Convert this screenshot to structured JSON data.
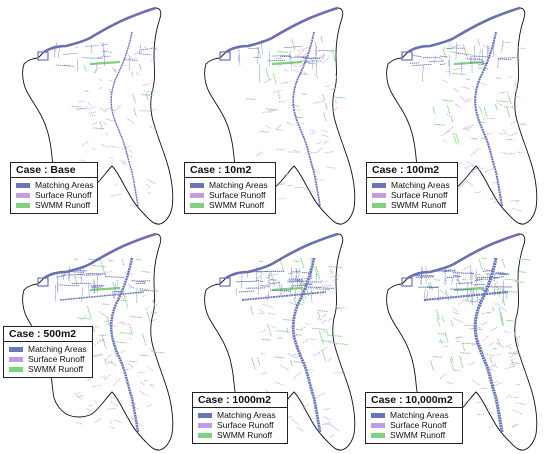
{
  "colors": {
    "matching": "#6a74b8",
    "surface": "#c49be6",
    "swmm": "#7fd07f",
    "coast": "#6a6fb0"
  },
  "legend_labels": {
    "matching": "Matching Areas",
    "surface": "Surface Runoff",
    "swmm": "SWMM Runoff"
  },
  "panels": [
    {
      "case_label": "Case : Base"
    },
    {
      "case_label": "Case : 10m2"
    },
    {
      "case_label": "Case : 100m2"
    },
    {
      "case_label": "Case : 500m2"
    },
    {
      "case_label": "Case : 1000m2"
    },
    {
      "case_label": "Case : 10,000m2"
    }
  ]
}
